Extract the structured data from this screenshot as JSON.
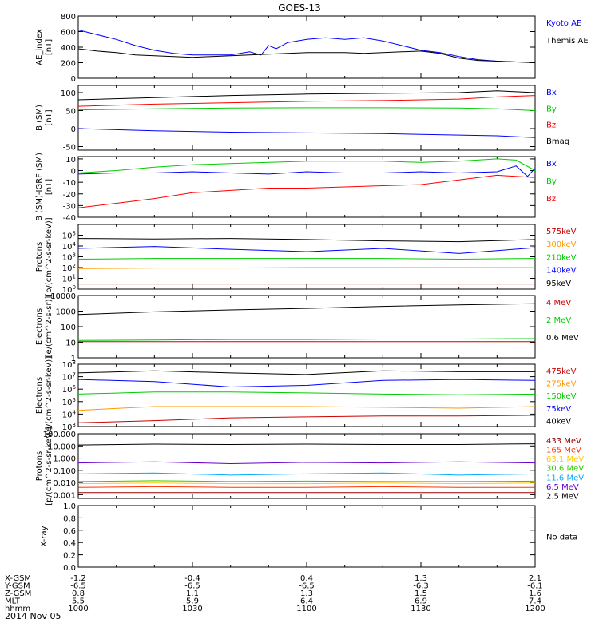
{
  "title": "GOES-13",
  "date": "2014 Nov 05",
  "footer": {
    "rows": [
      {
        "label": "X-GSM",
        "values": [
          "-1.2",
          "-0.4",
          "0.4",
          "1.3",
          "2.1"
        ]
      },
      {
        "label": "Y-GSM",
        "values": [
          "-6.5",
          "-6.5",
          "-6.5",
          "-6.3",
          "-6.1"
        ]
      },
      {
        "label": "Z-GSM",
        "values": [
          "0.8",
          "1.1",
          "1.3",
          "1.5",
          "1.6"
        ]
      },
      {
        "label": "MLT",
        "values": [
          "5.5",
          "5.9",
          "6.4",
          "6.9",
          "7.4"
        ]
      },
      {
        "label": "hhmm",
        "values": [
          "1000",
          "1030",
          "1100",
          "1130",
          "1200"
        ]
      }
    ]
  },
  "chart_data": [
    {
      "type": "line",
      "id": "ae",
      "ylabel": "AE_index\n[nT]",
      "yscale": "linear",
      "ylim": [
        0,
        800
      ],
      "yticks": [
        0,
        200,
        400,
        600,
        800
      ],
      "yticklabels": [
        "0",
        "200",
        "400",
        "600",
        "800"
      ],
      "legend": [
        {
          "name": "Kyoto AE",
          "color": "#0000ff"
        },
        {
          "name": "Themis AE",
          "color": "#000000"
        }
      ],
      "series": [
        {
          "name": "Kyoto AE",
          "color": "#0000ff",
          "x": [
            0,
            5,
            10,
            15,
            20,
            25,
            30,
            35,
            40,
            45,
            48,
            50,
            52,
            55,
            60,
            65,
            70,
            75,
            80,
            85,
            90,
            95,
            100,
            105,
            110,
            115,
            120
          ],
          "y": [
            620,
            560,
            500,
            420,
            360,
            320,
            300,
            300,
            300,
            340,
            300,
            420,
            380,
            460,
            500,
            520,
            500,
            520,
            480,
            420,
            360,
            330,
            280,
            240,
            220,
            210,
            210
          ]
        },
        {
          "name": "Themis AE",
          "color": "#000000",
          "x": [
            0,
            5,
            10,
            15,
            20,
            25,
            30,
            35,
            40,
            45,
            50,
            55,
            60,
            65,
            70,
            75,
            80,
            85,
            90,
            95,
            100,
            105,
            110,
            115,
            120
          ],
          "y": [
            380,
            350,
            330,
            300,
            290,
            280,
            270,
            280,
            290,
            300,
            310,
            320,
            330,
            330,
            330,
            320,
            330,
            340,
            350,
            320,
            260,
            230,
            220,
            210,
            200
          ]
        }
      ]
    },
    {
      "type": "line",
      "id": "bsm",
      "ylabel": "B (SM)\n[nT]",
      "yscale": "linear",
      "ylim": [
        -60,
        120
      ],
      "yticks": [
        -50,
        0,
        50,
        100
      ],
      "yticklabels": [
        "-50",
        "0",
        "50",
        "100"
      ],
      "legend": [
        {
          "name": "Bx",
          "color": "#0000ff"
        },
        {
          "name": "By",
          "color": "#00cc00"
        },
        {
          "name": "Bz",
          "color": "#ff0000"
        },
        {
          "name": "Bmag",
          "color": "#000000"
        }
      ],
      "series": [
        {
          "name": "Bmag",
          "color": "#000000",
          "x": [
            0,
            20,
            40,
            60,
            80,
            100,
            110,
            120
          ],
          "y": [
            80,
            86,
            92,
            96,
            98,
            100,
            105,
            100
          ]
        },
        {
          "name": "Bz",
          "color": "#ff0000",
          "x": [
            0,
            20,
            40,
            60,
            80,
            100,
            110,
            120
          ],
          "y": [
            62,
            68,
            72,
            76,
            78,
            82,
            88,
            92
          ]
        },
        {
          "name": "By",
          "color": "#00cc00",
          "x": [
            0,
            20,
            40,
            60,
            80,
            100,
            110,
            120
          ],
          "y": [
            52,
            55,
            57,
            58,
            58,
            57,
            55,
            50
          ]
        },
        {
          "name": "Bx",
          "color": "#0000ff",
          "x": [
            0,
            20,
            40,
            60,
            80,
            100,
            110,
            120
          ],
          "y": [
            0,
            -6,
            -10,
            -12,
            -14,
            -18,
            -20,
            -25
          ]
        }
      ]
    },
    {
      "type": "line",
      "id": "bigrf",
      "ylabel": "B (SM)-IGRF (SM)\n[nT]",
      "yscale": "linear",
      "ylim": [
        -40,
        12
      ],
      "yticks": [
        -40,
        -30,
        -20,
        -10,
        0,
        10
      ],
      "yticklabels": [
        "-40",
        "-30",
        "-20",
        "-10",
        "0",
        "10"
      ],
      "legend": [
        {
          "name": "Bx",
          "color": "#0000ff"
        },
        {
          "name": "By",
          "color": "#00cc00"
        },
        {
          "name": "Bz",
          "color": "#ff0000"
        }
      ],
      "series": [
        {
          "name": "By",
          "color": "#00cc00",
          "x": [
            0,
            10,
            20,
            30,
            40,
            50,
            60,
            70,
            80,
            90,
            100,
            110,
            115,
            120
          ],
          "y": [
            -2,
            0,
            3,
            5,
            6,
            7,
            8,
            8,
            8,
            7,
            8,
            10,
            9,
            0
          ]
        },
        {
          "name": "Bx",
          "color": "#0000ff",
          "x": [
            0,
            10,
            20,
            30,
            40,
            50,
            60,
            70,
            80,
            90,
            100,
            110,
            115,
            118,
            120
          ],
          "y": [
            -3,
            -2,
            -2,
            -1,
            -2,
            -3,
            -1,
            -2,
            -2,
            -1,
            -2,
            -1,
            4,
            -5,
            2
          ]
        },
        {
          "name": "Bz",
          "color": "#ff0000",
          "x": [
            0,
            10,
            20,
            30,
            40,
            50,
            60,
            70,
            80,
            90,
            100,
            110,
            120
          ],
          "y": [
            -32,
            -28,
            -24,
            -19,
            -17,
            -15,
            -15,
            -14,
            -13,
            -12,
            -8,
            -4,
            -6
          ]
        }
      ]
    },
    {
      "type": "line",
      "id": "protons1",
      "ylabel": "Protons\n[p/(cm^2-s-sr-keV)]",
      "yscale": "log",
      "ylim": [
        1,
        1000000
      ],
      "yticks": [
        1,
        10,
        100,
        1000,
        10000,
        100000
      ],
      "yticklabels": [
        "10^0",
        "10^1",
        "10^2",
        "10^3",
        "10^4",
        "10^5"
      ],
      "legend": [
        {
          "name": "575keV",
          "color": "#cc0000"
        },
        {
          "name": "300keV",
          "color": "#ff9900"
        },
        {
          "name": "210keV",
          "color": "#00cc00"
        },
        {
          "name": "140keV",
          "color": "#0000ff"
        },
        {
          "name": "95keV",
          "color": "#000000"
        }
      ],
      "series": [
        {
          "name": "95keV",
          "color": "#000000",
          "x": [
            0,
            20,
            40,
            60,
            80,
            100,
            120
          ],
          "y": [
            50000,
            45000,
            50000,
            40000,
            30000,
            25000,
            40000
          ]
        },
        {
          "name": "140keV",
          "color": "#0000ff",
          "x": [
            0,
            20,
            40,
            60,
            80,
            100,
            120
          ],
          "y": [
            6000,
            9000,
            5000,
            3000,
            6000,
            2000,
            7000
          ]
        },
        {
          "name": "210keV",
          "color": "#00cc00",
          "x": [
            0,
            20,
            40,
            60,
            80,
            100,
            120
          ],
          "y": [
            600,
            700,
            700,
            700,
            700,
            600,
            700
          ]
        },
        {
          "name": "300keV",
          "color": "#ff9900",
          "x": [
            0,
            20,
            40,
            60,
            80,
            100,
            120
          ],
          "y": [
            80,
            90,
            90,
            100,
            100,
            100,
            100
          ]
        },
        {
          "name": "575keV",
          "color": "#cc0000",
          "x": [
            0,
            20,
            40,
            60,
            80,
            100,
            120
          ],
          "y": [
            3,
            3,
            3,
            3,
            3,
            3,
            3
          ]
        }
      ]
    },
    {
      "type": "line",
      "id": "electrons1",
      "ylabel": "Electrons\n[e/(cm^2-s-sr)]",
      "yscale": "log",
      "ylim": [
        1,
        10000
      ],
      "yticks": [
        1,
        10,
        100,
        1000,
        10000
      ],
      "yticklabels": [
        "1",
        "10",
        "100",
        "1000",
        "10000"
      ],
      "legend": [
        {
          "name": "4 MeV",
          "color": "#cc0000"
        },
        {
          "name": "2 MeV",
          "color": "#00cc00"
        },
        {
          "name": "0.6 MeV",
          "color": "#000000"
        }
      ],
      "series": [
        {
          "name": "0.6 MeV",
          "color": "#000000",
          "x": [
            0,
            20,
            40,
            60,
            80,
            100,
            120
          ],
          "y": [
            600,
            900,
            1200,
            1500,
            2000,
            2500,
            3000
          ]
        },
        {
          "name": "2 MeV",
          "color": "#00cc00",
          "x": [
            0,
            20,
            40,
            60,
            80,
            100,
            120
          ],
          "y": [
            13,
            14,
            15,
            15,
            16,
            16,
            17
          ]
        },
        {
          "name": "4 MeV",
          "color": "#cc0000",
          "x": [
            0,
            20,
            40,
            60,
            80,
            100,
            120
          ],
          "y": [
            11,
            11,
            11,
            11,
            11,
            11,
            11
          ]
        }
      ]
    },
    {
      "type": "line",
      "id": "electrons2",
      "ylabel": "Electrons\n[e/(cm^2-s-sr-keV)]",
      "yscale": "log",
      "ylim": [
        1000,
        100000000
      ],
      "yticks": [
        1000,
        10000,
        100000,
        1000000,
        10000000,
        100000000
      ],
      "yticklabels": [
        "10^3",
        "10^4",
        "10^5",
        "10^6",
        "10^7",
        "10^8"
      ],
      "legend": [
        {
          "name": "475keV",
          "color": "#cc0000"
        },
        {
          "name": "275keV",
          "color": "#ff9900"
        },
        {
          "name": "150keV",
          "color": "#00cc00"
        },
        {
          "name": "75keV",
          "color": "#0000ff"
        },
        {
          "name": "40keV",
          "color": "#000000"
        }
      ],
      "series": [
        {
          "name": "40keV",
          "color": "#000000",
          "x": [
            0,
            20,
            40,
            60,
            80,
            100,
            120
          ],
          "y": [
            20000000,
            30000000,
            20000000,
            15000000,
            30000000,
            25000000,
            25000000
          ]
        },
        {
          "name": "75keV",
          "color": "#0000ff",
          "x": [
            0,
            20,
            40,
            60,
            80,
            100,
            120
          ],
          "y": [
            6000000,
            4000000,
            1500000,
            2000000,
            5000000,
            6000000,
            5000000
          ]
        },
        {
          "name": "150keV",
          "color": "#00cc00",
          "x": [
            0,
            20,
            40,
            60,
            80,
            100,
            120
          ],
          "y": [
            400000,
            600000,
            600000,
            500000,
            400000,
            350000,
            400000
          ]
        },
        {
          "name": "275keV",
          "color": "#ff9900",
          "x": [
            0,
            20,
            40,
            60,
            80,
            100,
            120
          ],
          "y": [
            20000,
            40000,
            40000,
            40000,
            35000,
            30000,
            40000
          ]
        },
        {
          "name": "475keV",
          "color": "#cc0000",
          "x": [
            0,
            20,
            40,
            60,
            80,
            100,
            120
          ],
          "y": [
            2000,
            3000,
            5000,
            6000,
            7000,
            7000,
            8000
          ]
        }
      ]
    },
    {
      "type": "line",
      "id": "protons2",
      "ylabel": "Protons\n[p/(cm^2-s-sr-keV)]",
      "yscale": "log",
      "ylim": [
        0.0005,
        100
      ],
      "yticks": [
        0.001,
        0.01,
        0.1,
        1,
        10,
        100
      ],
      "yticklabels": [
        "0.001",
        "0.010",
        "0.100",
        "1.000",
        "10.000",
        "100.000"
      ],
      "legend": [
        {
          "name": "433 MeV",
          "color": "#990000"
        },
        {
          "name": "165 MeV",
          "color": "#ff3300"
        },
        {
          "name": "63.1 MeV",
          "color": "#ffcc00"
        },
        {
          "name": "30.6 MeV",
          "color": "#33cc00"
        },
        {
          "name": "11.6 MeV",
          "color": "#00aaff"
        },
        {
          "name": "6.5 MeV",
          "color": "#6600cc"
        },
        {
          "name": "2.5 MeV",
          "color": "#000000"
        }
      ],
      "series": [
        {
          "name": "2.5 MeV",
          "color": "#000000",
          "x": [
            0,
            20,
            40,
            60,
            80,
            100,
            120
          ],
          "y": [
            12,
            14,
            13,
            14,
            13,
            13,
            15
          ]
        },
        {
          "name": "6.5 MeV",
          "color": "#6600cc",
          "x": [
            0,
            20,
            40,
            60,
            80,
            100,
            120
          ],
          "y": [
            0.4,
            0.5,
            0.35,
            0.45,
            0.4,
            0.5,
            0.4
          ]
        },
        {
          "name": "11.6 MeV",
          "color": "#00aaff",
          "x": [
            0,
            20,
            40,
            60,
            80,
            100,
            120
          ],
          "y": [
            0.05,
            0.06,
            0.04,
            0.05,
            0.06,
            0.04,
            0.05
          ]
        },
        {
          "name": "30.6 MeV",
          "color": "#33cc00",
          "x": [
            0,
            20,
            40,
            60,
            80,
            100,
            120
          ],
          "y": [
            0.012,
            0.014,
            0.012,
            0.013,
            0.012,
            0.012,
            0.013
          ]
        },
        {
          "name": "63.1 MeV",
          "color": "#ffcc00",
          "x": [
            0,
            20,
            40,
            60,
            80,
            100,
            120
          ],
          "y": [
            0.008,
            0.009,
            0.008,
            0.008,
            0.009,
            0.008,
            0.009
          ]
        },
        {
          "name": "165 MeV",
          "color": "#ff3300",
          "x": [
            0,
            20,
            40,
            60,
            80,
            100,
            120
          ],
          "y": [
            0.004,
            0.0045,
            0.004,
            0.004,
            0.0045,
            0.004,
            0.004
          ]
        },
        {
          "name": "433 MeV",
          "color": "#990000",
          "x": [
            0,
            20,
            40,
            60,
            80,
            100,
            120
          ],
          "y": [
            0.0015,
            0.0015,
            0.0015,
            0.0015,
            0.0015,
            0.0015,
            0.0015
          ]
        }
      ]
    },
    {
      "type": "line",
      "id": "xray",
      "ylabel": "X-ray",
      "yscale": "linear",
      "ylim": [
        0,
        1
      ],
      "yticks": [
        0,
        0.2,
        0.4,
        0.6,
        0.8,
        1.0
      ],
      "yticklabels": [
        "0.0",
        "0.2",
        "0.4",
        "0.6",
        "0.8",
        "1.0"
      ],
      "legend": [
        {
          "name": "No data",
          "color": "#000000"
        }
      ],
      "series": []
    }
  ]
}
